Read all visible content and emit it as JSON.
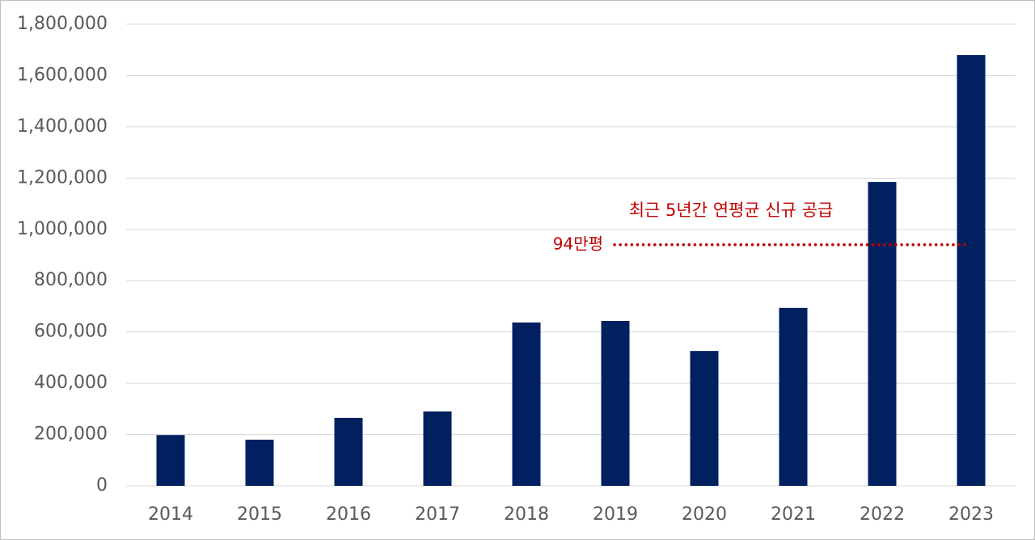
{
  "chart_data": {
    "type": "bar",
    "categories": [
      "2014",
      "2015",
      "2016",
      "2017",
      "2018",
      "2019",
      "2020",
      "2021",
      "2022",
      "2023"
    ],
    "values": [
      198000,
      180000,
      265000,
      290000,
      637000,
      643000,
      526000,
      694000,
      1185000,
      1680000
    ],
    "color": "#002060",
    "ylim": [
      0,
      1800000
    ],
    "yticks": [
      0,
      {
        "value": 200000,
        "label": "200,000"
      },
      {
        "value": 400000,
        "label": "400,000"
      },
      {
        "value": 600000,
        "label": "600,000"
      },
      {
        "value": 800000,
        "label": "800,000"
      },
      {
        "value": 1000000,
        "label": "1,000,000"
      },
      {
        "value": 1200000,
        "label": "1,200,000"
      },
      {
        "value": 1400000,
        "label": "1,400,000"
      },
      {
        "value": 1600000,
        "label": "1,600,000"
      },
      {
        "value": 1800000,
        "label": "1,800,000"
      }
    ],
    "grid": true,
    "annotation": {
      "title": "최근 5년간 연평균 신규 공급",
      "label": "94만평",
      "value": 940000,
      "color": "#c00000"
    }
  }
}
